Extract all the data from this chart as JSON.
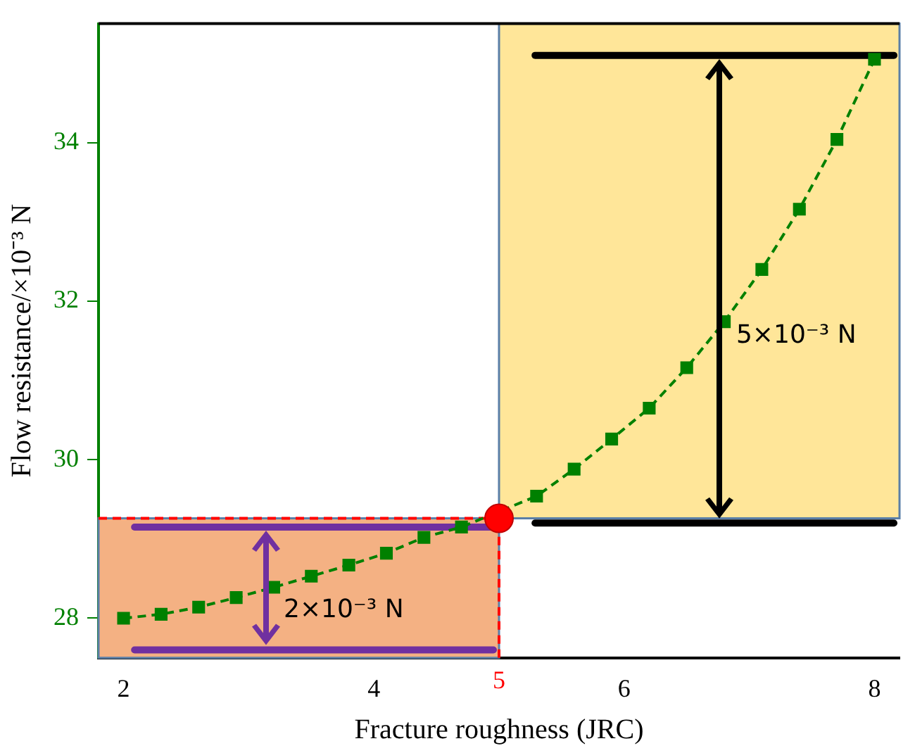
{
  "chart_data": {
    "type": "line",
    "xlabel": "Fracture roughness (JRC)",
    "ylabel": "Flow resistance/×10⁻³ N",
    "x": [
      2,
      2.3,
      2.6,
      2.9,
      3.2,
      3.5,
      3.8,
      4.1,
      4.4,
      4.7,
      5,
      5.3,
      5.6,
      5.9,
      6.2,
      6.5,
      6.8,
      7.1,
      7.4,
      7.7,
      8
    ],
    "series": [
      {
        "color": "#008000",
        "values": [
          28.0,
          28.05,
          28.14,
          28.26,
          28.39,
          28.53,
          28.67,
          28.82,
          29.02,
          29.15,
          null,
          29.54,
          29.88,
          30.26,
          30.65,
          31.16,
          31.74,
          32.4,
          33.16,
          34.04,
          35.05
        ],
        "marker": "square",
        "line_style": "dashed"
      },
      {
        "type": "scatter",
        "color": "#ff0000",
        "x": [
          5
        ],
        "values": [
          29.26
        ],
        "marker": "circle"
      }
    ],
    "xlim": [
      1.8,
      8.2
    ],
    "xticks": [
      2,
      4,
      6,
      8
    ],
    "ylim": [
      27.5,
      35.5
    ],
    "yticks": [
      28,
      30,
      32,
      34
    ],
    "ref_lines": [
      {
        "axis": "x",
        "value": 5,
        "label": "5",
        "color": "#ff0000",
        "line_style": "dashed"
      },
      {
        "axis": "y",
        "value": 29.26,
        "color": "#ff0000",
        "line_style": "dashed"
      },
      {
        "axis": "y",
        "value": 29.15,
        "color": "#7030a0"
      },
      {
        "axis": "y",
        "value": 27.6,
        "color": "#7030a0"
      },
      {
        "axis": "y",
        "value": 35.1,
        "color": "#000000"
      },
      {
        "axis": "y",
        "value": 29.2,
        "color": "#000000"
      }
    ],
    "bands": [
      {
        "axis": "x",
        "from": 1.8,
        "to": 5,
        "color": "#f4b183"
      },
      {
        "axis": "x",
        "from": 5,
        "to": 8.2,
        "color": "#ffe699"
      }
    ],
    "annotations": [
      "2×10⁻³ N",
      "5×10⁻³ N"
    ],
    "grid": false,
    "legend": false
  }
}
